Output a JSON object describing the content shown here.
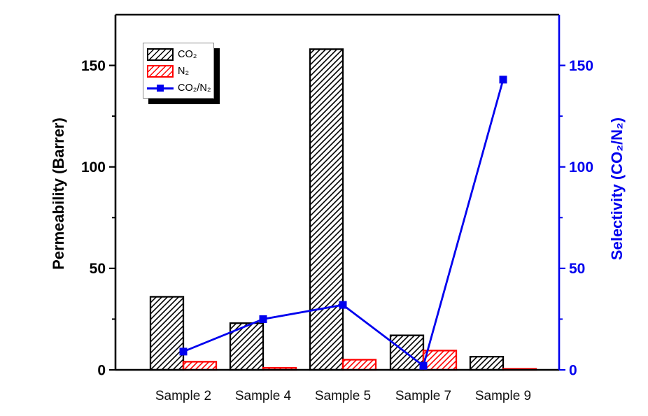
{
  "chart_data": {
    "type": "bar",
    "title": "",
    "categories": [
      "Sample 2",
      "Sample 4",
      "Sample 5",
      "Sample 7",
      "Sample 9"
    ],
    "series": [
      {
        "name": "CO₂",
        "type": "bar",
        "axis": "left",
        "color": "#000000",
        "fill": "hatch",
        "values": [
          36,
          23,
          158,
          17,
          6.5
        ]
      },
      {
        "name": "N₂",
        "type": "bar",
        "axis": "left",
        "color": "#ff0000",
        "fill": "hatch",
        "values": [
          4,
          1,
          5,
          9.5,
          0.5
        ]
      },
      {
        "name": "CO₂/N₂",
        "type": "line",
        "axis": "right",
        "color": "#0000ee",
        "marker": "square",
        "values": [
          9,
          25,
          32,
          2,
          143
        ]
      }
    ],
    "left_axis": {
      "label": "Permeability (Barrer)",
      "color": "#000000",
      "major_ticks": [
        0,
        50,
        100,
        150
      ],
      "minor_ticks": [
        25,
        75,
        125
      ],
      "range": [
        0,
        175
      ]
    },
    "right_axis": {
      "label": "Selectivity (CO₂/N₂)",
      "color": "#0000ee",
      "major_ticks": [
        0,
        50,
        100,
        150
      ],
      "minor_ticks": [
        25,
        75,
        125
      ],
      "range": [
        0,
        175
      ]
    },
    "legend": {
      "position": "top-left"
    },
    "grid": "off"
  }
}
